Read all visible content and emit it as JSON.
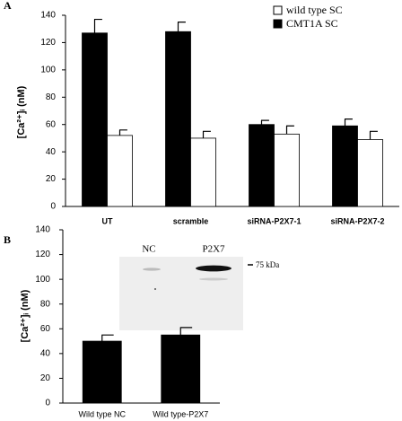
{
  "chart_data": [
    {
      "type": "bar",
      "panel": "A",
      "ylabel": "[Ca²⁺]ᵢ (nM)",
      "categories": [
        "UT",
        "scramble",
        "siRNA-P2X7-1",
        "siRNA-P2X7-2"
      ],
      "series": [
        {
          "name": "CMT1A SC",
          "color": "#000000",
          "values": [
            127,
            128,
            60,
            59
          ],
          "errors": [
            10,
            7,
            3,
            5
          ]
        },
        {
          "name": "wild type SC",
          "color": "#ffffff",
          "values": [
            52,
            50,
            53,
            49
          ],
          "errors": [
            4,
            5,
            6,
            6
          ]
        }
      ],
      "ylim": [
        0,
        140
      ],
      "yticks": [
        0,
        20,
        40,
        60,
        80,
        100,
        120,
        140
      ],
      "legend": "upper right"
    },
    {
      "type": "bar",
      "panel": "B",
      "ylabel": "[Ca²⁺]ᵢ (nM)",
      "categories": [
        "Wild type NC",
        "Wild type-P2X7"
      ],
      "series": [
        {
          "color": "#000000",
          "values": [
            50,
            55
          ],
          "errors": [
            5,
            6
          ]
        }
      ],
      "ylim": [
        0,
        140
      ],
      "yticks": [
        0,
        20,
        40,
        60,
        80,
        100,
        120,
        140
      ],
      "inset": {
        "lanes": [
          "NC",
          "P2X7"
        ],
        "marker": "75 kDa"
      }
    }
  ]
}
